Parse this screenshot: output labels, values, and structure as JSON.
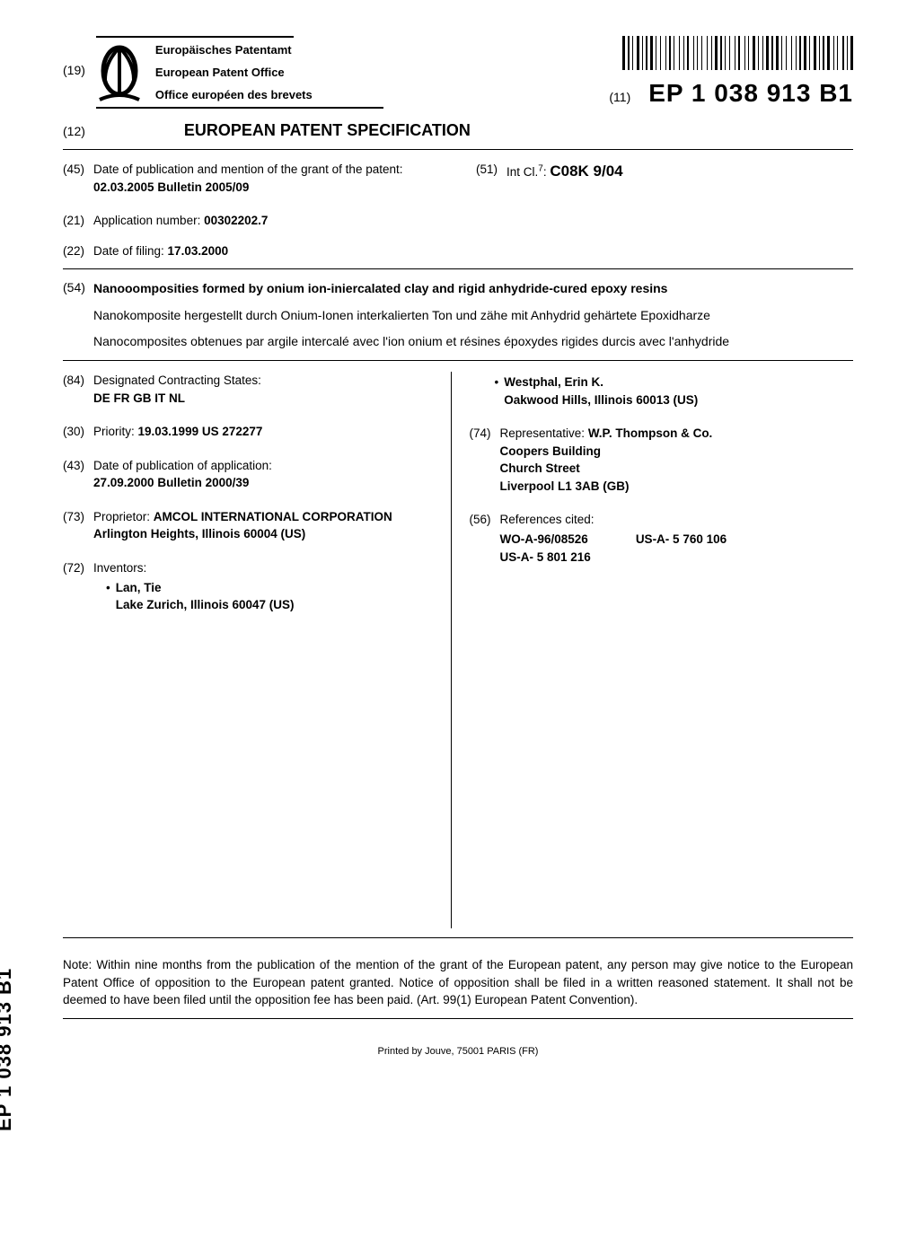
{
  "header": {
    "code19": "(19)",
    "office_de": "Europäisches Patentamt",
    "office_en": "European Patent Office",
    "office_fr": "Office européen des brevets",
    "code11": "(11)",
    "pubnum": "EP 1 038 913 B1"
  },
  "doc_kind": {
    "code12": "(12)",
    "label": "EUROPEAN PATENT SPECIFICATION"
  },
  "grant": {
    "inid": "(45)",
    "label": "Date of publication and mention of the grant of the patent:",
    "value": "02.03.2005   Bulletin 2005/09"
  },
  "intcl": {
    "inid": "(51)",
    "label_prefix": "Int Cl.",
    "edition": "7",
    "sep": ": ",
    "code": "C08K 9/04"
  },
  "appnum": {
    "inid": "(21)",
    "label": "Application number: ",
    "value": "00302202.7"
  },
  "filing": {
    "inid": "(22)",
    "label": "Date of filing: ",
    "value": "17.03.2000"
  },
  "title": {
    "inid": "(54)",
    "en": "Nanooomposities formed by onium ion-iniercalated clay and rigid anhydride-cured epoxy resins",
    "de": "Nanokomposite hergestellt durch Onium-Ionen interkalierten Ton und zähe mit Anhydrid gehärtete Epoxidharze",
    "fr": "Nanocomposites obtenues par argile intercalé avec l'ion onium et résines époxydes rigides durcis avec l'anhydride"
  },
  "states": {
    "inid": "(84)",
    "label": "Designated Contracting States:",
    "value": "DE FR GB IT NL"
  },
  "priority": {
    "inid": "(30)",
    "label": "Priority: ",
    "value": "19.03.1999  US 272277"
  },
  "pubapp": {
    "inid": "(43)",
    "label": "Date of publication of application:",
    "value": "27.09.2000   Bulletin 2000/39"
  },
  "proprietor": {
    "inid": "(73)",
    "label": "Proprietor: ",
    "name": "AMCOL INTERNATIONAL CORPORATION",
    "addr": "Arlington Heights, Illinois 60004 (US)"
  },
  "inventors": {
    "inid": "(72)",
    "label": "Inventors:",
    "items": [
      {
        "name": "Lan, Tie",
        "addr": "Lake Zurich, Illinois 60047 (US)"
      },
      {
        "name": "Westphal, Erin K.",
        "addr": "Oakwood Hills, Illinois 60013 (US)"
      }
    ]
  },
  "representative": {
    "inid": "(74)",
    "label": "Representative: ",
    "name": "W.P. Thompson & Co.",
    "addr1": "Coopers Building",
    "addr2": "Church Street",
    "addr3": "Liverpool L1 3AB (GB)"
  },
  "references": {
    "inid": "(56)",
    "label": "References cited:",
    "col1": [
      "WO-A-96/08526",
      "US-A- 5 801 216"
    ],
    "col2": [
      "US-A- 5 760 106"
    ]
  },
  "spine": "EP 1 038 913 B1",
  "note": "Note: Within nine months from the publication of the mention of the grant of the European patent, any person may give notice to the European Patent Office of opposition to the European patent granted. Notice of opposition shall be filed in a written reasoned statement. It shall not be deemed to have been filed until the opposition fee has been paid. (Art. 99(1) European Patent Convention).",
  "printer": "Printed by Jouve, 75001 PARIS (FR)",
  "barcode_widths": [
    3,
    1,
    2,
    1,
    1,
    2,
    3,
    1,
    1,
    1,
    2,
    1,
    3,
    1,
    1,
    2,
    1,
    3,
    1,
    1,
    2,
    1,
    1,
    3,
    1,
    2,
    1,
    1,
    2,
    3,
    1,
    1,
    1,
    2,
    1,
    3,
    1,
    2,
    1,
    1,
    3,
    1,
    2,
    1,
    1,
    2,
    1,
    3,
    1,
    1,
    2,
    3,
    1,
    1,
    1,
    2,
    3,
    1,
    1,
    2,
    1,
    1,
    3,
    1,
    2,
    1,
    3,
    1,
    1,
    2,
    1,
    3,
    1,
    2,
    1,
    1,
    2,
    1,
    3,
    1,
    1,
    2,
    3,
    1,
    1,
    1,
    2,
    1,
    3,
    2,
    1,
    1,
    1,
    3,
    2,
    1,
    1,
    1,
    3
  ]
}
